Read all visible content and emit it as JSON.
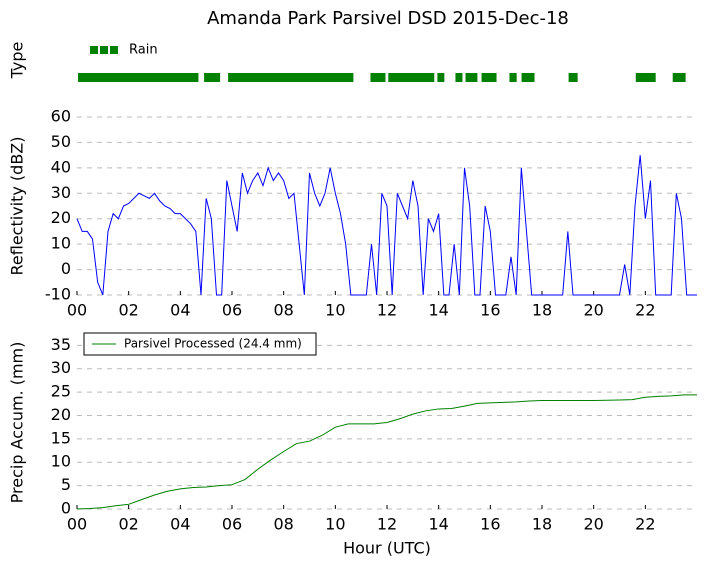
{
  "title": "Amanda Park Parsivel DSD 2015-Dec-18",
  "chart_data": [
    {
      "type": "timeline",
      "ylabel": "Type",
      "xlim": [
        0,
        24
      ],
      "series": [
        {
          "name": "Rain",
          "color": "#008000",
          "intervals": [
            [
              0.04,
              4.7
            ],
            [
              4.92,
              5.54
            ],
            [
              5.85,
              10.7
            ],
            [
              11.36,
              11.94
            ],
            [
              12.05,
              13.83
            ],
            [
              13.95,
              14.22
            ],
            [
              14.65,
              14.92
            ],
            [
              15.04,
              15.5
            ],
            [
              15.66,
              16.24
            ],
            [
              16.74,
              17.02
            ],
            [
              17.21,
              17.71
            ],
            [
              19.03,
              19.38
            ],
            [
              21.63,
              22.4
            ],
            [
              23.06,
              23.56
            ]
          ]
        }
      ]
    },
    {
      "type": "line",
      "ylabel": "Reflectivity (dBZ)",
      "xlim": [
        0,
        24
      ],
      "ylim": [
        -10,
        60
      ],
      "grid": true,
      "yticks": [
        -10,
        0,
        10,
        20,
        30,
        40,
        50,
        60
      ],
      "xticks": [
        {
          "value": 0,
          "label": "00"
        },
        {
          "value": 2,
          "label": "02"
        },
        {
          "value": 4,
          "label": "04"
        },
        {
          "value": 6,
          "label": "06"
        },
        {
          "value": 8,
          "label": "08"
        },
        10,
        12,
        14,
        16,
        18,
        20,
        22
      ],
      "x": [
        0.0,
        0.2,
        0.4,
        0.6,
        0.8,
        1.0,
        1.2,
        1.4,
        1.6,
        1.8,
        2.0,
        2.2,
        2.4,
        2.6,
        2.8,
        3.0,
        3.2,
        3.4,
        3.6,
        3.8,
        4.0,
        4.2,
        4.4,
        4.6,
        4.8,
        5.0,
        5.2,
        5.4,
        5.6,
        5.8,
        6.0,
        6.2,
        6.4,
        6.6,
        6.8,
        7.0,
        7.2,
        7.4,
        7.6,
        7.8,
        8.0,
        8.2,
        8.4,
        8.6,
        8.8,
        9.0,
        9.2,
        9.4,
        9.6,
        9.8,
        10.0,
        10.2,
        10.4,
        10.6,
        10.8,
        11.0,
        11.2,
        11.4,
        11.6,
        11.8,
        12.0,
        12.2,
        12.4,
        12.6,
        12.8,
        13.0,
        13.2,
        13.4,
        13.6,
        13.8,
        14.0,
        14.2,
        14.4,
        14.6,
        14.8,
        15.0,
        15.2,
        15.4,
        15.6,
        15.8,
        16.0,
        16.2,
        16.4,
        16.6,
        16.8,
        17.0,
        17.2,
        17.4,
        17.6,
        17.8,
        18.0,
        18.2,
        18.4,
        18.6,
        18.8,
        19.0,
        19.2,
        19.4,
        19.6,
        19.8,
        20.0,
        20.2,
        20.4,
        20.6,
        20.8,
        21.0,
        21.2,
        21.4,
        21.6,
        21.8,
        22.0,
        22.2,
        22.4,
        22.6,
        22.8,
        23.0,
        23.2,
        23.4,
        23.6,
        23.8,
        24.0
      ],
      "series": [
        {
          "color": "#0000ff",
          "values": [
            20,
            15,
            15,
            12,
            -5,
            -10,
            15,
            22,
            20,
            25,
            26,
            28,
            30,
            29,
            28,
            30,
            27,
            25,
            24,
            22,
            22,
            20,
            18,
            15,
            -10,
            28,
            20,
            -10,
            -10,
            35,
            25,
            15,
            38,
            30,
            35,
            38,
            33,
            40,
            35,
            38,
            35,
            28,
            30,
            10,
            -10,
            38,
            30,
            25,
            30,
            40,
            30,
            22,
            10,
            -10,
            -10,
            -10,
            -10,
            10,
            -10,
            30,
            25,
            -10,
            30,
            25,
            20,
            35,
            25,
            -10,
            20,
            15,
            22,
            -10,
            -10,
            10,
            -10,
            40,
            25,
            -10,
            -10,
            25,
            15,
            -10,
            -10,
            -10,
            5,
            -10,
            40,
            15,
            -10,
            -10,
            -10,
            -10,
            -10,
            -10,
            -10,
            15,
            -10,
            -10,
            -10,
            -10,
            -10,
            -10,
            -10,
            -10,
            -10,
            -10,
            2,
            -10,
            25,
            45,
            20,
            35,
            -10,
            -10,
            -10,
            -10,
            30,
            20,
            -10,
            -10,
            -10
          ]
        }
      ]
    },
    {
      "type": "line",
      "ylabel": "Precip Accum. (mm)",
      "xlabel": "Hour (UTC)",
      "xlim": [
        0,
        24
      ],
      "ylim": [
        0,
        37
      ],
      "grid": true,
      "legend": "upper left",
      "yticks": [
        0,
        5,
        10,
        15,
        20,
        25,
        30,
        35
      ],
      "xticks": [
        {
          "value": 0,
          "label": "00"
        },
        {
          "value": 2,
          "label": "02"
        },
        {
          "value": 4,
          "label": "04"
        },
        {
          "value": 6,
          "label": "06"
        },
        {
          "value": 8,
          "label": "08"
        },
        10,
        12,
        14,
        16,
        18,
        20,
        22
      ],
      "x": [
        0,
        0.5,
        1,
        1.5,
        2,
        2.5,
        3,
        3.5,
        4,
        4.5,
        5,
        5.5,
        6,
        6.5,
        7,
        7.5,
        8,
        8.5,
        9,
        9.5,
        10,
        10.5,
        11,
        11.5,
        12,
        12.5,
        13,
        13.5,
        14,
        14.5,
        15,
        15.5,
        16,
        16.5,
        17,
        17.5,
        18,
        19,
        20,
        21,
        21.5,
        22,
        22.5,
        23,
        23.5,
        24
      ],
      "series": [
        {
          "name": "Parsivel Processed (24.4 mm)",
          "color": "#008000",
          "values": [
            0,
            0.1,
            0.3,
            0.7,
            1.0,
            2.0,
            3.0,
            3.8,
            4.3,
            4.6,
            4.7,
            5.0,
            5.2,
            6.3,
            8.5,
            10.5,
            12.3,
            14.0,
            14.5,
            15.8,
            17.5,
            18.2,
            18.2,
            18.2,
            18.5,
            19.3,
            20.3,
            21.0,
            21.4,
            21.5,
            22.0,
            22.6,
            22.7,
            22.8,
            22.9,
            23.1,
            23.2,
            23.2,
            23.2,
            23.3,
            23.4,
            23.9,
            24.1,
            24.2,
            24.4,
            24.4
          ]
        }
      ]
    }
  ]
}
